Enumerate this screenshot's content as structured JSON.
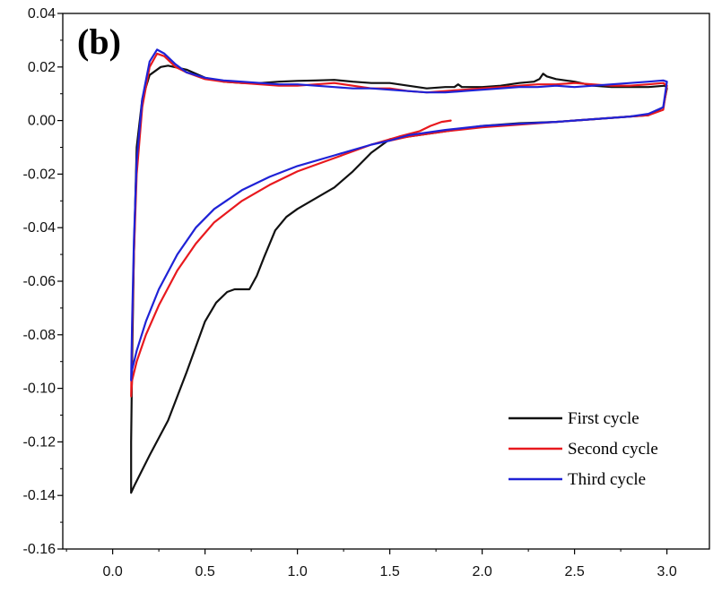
{
  "chart_data": {
    "type": "line",
    "panel_label": "(b)",
    "xlabel": "",
    "ylabel": "",
    "xlim": [
      -0.27,
      3.23
    ],
    "ylim": [
      -0.16,
      0.04
    ],
    "x_ticks": [
      0.0,
      0.5,
      1.0,
      1.5,
      2.0,
      2.5,
      3.0
    ],
    "x_tick_labels": [
      "0.0",
      "0.5",
      "1.0",
      "1.5",
      "2.0",
      "2.5",
      "3.0"
    ],
    "y_ticks": [
      0.04,
      0.02,
      0.0,
      -0.02,
      -0.04,
      -0.06,
      -0.08,
      -0.1,
      -0.12,
      -0.14,
      -0.16
    ],
    "y_tick_labels": [
      "0.04",
      "0.02",
      "0.00",
      "-0.02",
      "-0.04",
      "-0.06",
      "-0.08",
      "-0.10",
      "-0.12",
      "-0.14",
      "-0.16"
    ],
    "grid": false,
    "legend_position": "bottom-right",
    "series": [
      {
        "name": "First cycle",
        "color": "#111111",
        "points": [
          [
            1.5,
            -0.007
          ],
          [
            1.4,
            -0.012
          ],
          [
            1.3,
            -0.019
          ],
          [
            1.2,
            -0.025
          ],
          [
            1.1,
            -0.029
          ],
          [
            1.0,
            -0.033
          ],
          [
            0.94,
            -0.036
          ],
          [
            0.88,
            -0.041
          ],
          [
            0.82,
            -0.051
          ],
          [
            0.78,
            -0.058
          ],
          [
            0.74,
            -0.063
          ],
          [
            0.7,
            -0.063
          ],
          [
            0.66,
            -0.063
          ],
          [
            0.62,
            -0.064
          ],
          [
            0.56,
            -0.068
          ],
          [
            0.5,
            -0.075
          ],
          [
            0.4,
            -0.094
          ],
          [
            0.3,
            -0.112
          ],
          [
            0.2,
            -0.125
          ],
          [
            0.12,
            -0.136
          ],
          [
            0.1,
            -0.139
          ],
          [
            0.1,
            -0.12
          ],
          [
            0.105,
            -0.09
          ],
          [
            0.115,
            -0.05
          ],
          [
            0.13,
            -0.01
          ],
          [
            0.16,
            0.008
          ],
          [
            0.2,
            0.017
          ],
          [
            0.26,
            0.02
          ],
          [
            0.3,
            0.0205
          ],
          [
            0.4,
            0.019
          ],
          [
            0.5,
            0.016
          ],
          [
            0.6,
            0.0145
          ],
          [
            0.7,
            0.014
          ],
          [
            0.8,
            0.014
          ],
          [
            0.9,
            0.0145
          ],
          [
            1.0,
            0.0148
          ],
          [
            1.1,
            0.015
          ],
          [
            1.2,
            0.0152
          ],
          [
            1.3,
            0.0145
          ],
          [
            1.4,
            0.014
          ],
          [
            1.5,
            0.014
          ],
          [
            1.6,
            0.013
          ],
          [
            1.7,
            0.012
          ],
          [
            1.8,
            0.0125
          ],
          [
            1.85,
            0.0125
          ],
          [
            1.87,
            0.0135
          ],
          [
            1.89,
            0.0125
          ],
          [
            2.0,
            0.0125
          ],
          [
            2.1,
            0.013
          ],
          [
            2.2,
            0.014
          ],
          [
            2.28,
            0.0145
          ],
          [
            2.31,
            0.0155
          ],
          [
            2.33,
            0.0175
          ],
          [
            2.35,
            0.0165
          ],
          [
            2.4,
            0.0155
          ],
          [
            2.5,
            0.0145
          ],
          [
            2.6,
            0.013
          ],
          [
            2.7,
            0.0125
          ],
          [
            2.8,
            0.0125
          ],
          [
            2.9,
            0.0125
          ],
          [
            2.99,
            0.013
          ],
          [
            3.0,
            0.012
          ],
          [
            2.98,
            0.005
          ],
          [
            2.9,
            0.002
          ],
          [
            2.8,
            0.0015
          ],
          [
            2.6,
            0.0005
          ],
          [
            2.4,
            -0.0005
          ],
          [
            2.2,
            -0.001
          ],
          [
            2.0,
            -0.002
          ],
          [
            1.8,
            -0.004
          ],
          [
            1.6,
            -0.006
          ],
          [
            1.5,
            -0.007
          ]
        ]
      },
      {
        "name": "Second cycle",
        "color": "#e8191e",
        "points": [
          [
            1.83,
            0.0
          ],
          [
            1.78,
            -0.0005
          ],
          [
            1.72,
            -0.002
          ],
          [
            1.66,
            -0.004
          ],
          [
            1.55,
            -0.006
          ],
          [
            1.4,
            -0.009
          ],
          [
            1.2,
            -0.014
          ],
          [
            1.0,
            -0.019
          ],
          [
            0.85,
            -0.024
          ],
          [
            0.7,
            -0.03
          ],
          [
            0.55,
            -0.038
          ],
          [
            0.45,
            -0.046
          ],
          [
            0.35,
            -0.056
          ],
          [
            0.25,
            -0.069
          ],
          [
            0.18,
            -0.08
          ],
          [
            0.13,
            -0.09
          ],
          [
            0.105,
            -0.097
          ],
          [
            0.1,
            -0.103
          ],
          [
            0.105,
            -0.08
          ],
          [
            0.115,
            -0.05
          ],
          [
            0.13,
            -0.02
          ],
          [
            0.16,
            0.005
          ],
          [
            0.2,
            0.02
          ],
          [
            0.24,
            0.025
          ],
          [
            0.28,
            0.024
          ],
          [
            0.34,
            0.02
          ],
          [
            0.4,
            0.018
          ],
          [
            0.5,
            0.0155
          ],
          [
            0.6,
            0.0145
          ],
          [
            0.7,
            0.014
          ],
          [
            0.8,
            0.0135
          ],
          [
            0.9,
            0.013
          ],
          [
            1.0,
            0.013
          ],
          [
            1.1,
            0.0135
          ],
          [
            1.2,
            0.014
          ],
          [
            1.3,
            0.013
          ],
          [
            1.4,
            0.012
          ],
          [
            1.5,
            0.012
          ],
          [
            1.6,
            0.011
          ],
          [
            1.7,
            0.0105
          ],
          [
            1.8,
            0.011
          ],
          [
            1.9,
            0.0115
          ],
          [
            2.0,
            0.012
          ],
          [
            2.1,
            0.0125
          ],
          [
            2.2,
            0.013
          ],
          [
            2.3,
            0.0135
          ],
          [
            2.4,
            0.0135
          ],
          [
            2.5,
            0.014
          ],
          [
            2.6,
            0.0135
          ],
          [
            2.7,
            0.013
          ],
          [
            2.8,
            0.013
          ],
          [
            2.9,
            0.0135
          ],
          [
            2.98,
            0.014
          ],
          [
            3.0,
            0.013
          ],
          [
            2.98,
            0.004
          ],
          [
            2.9,
            0.002
          ],
          [
            2.8,
            0.0015
          ],
          [
            2.6,
            0.0005
          ],
          [
            2.4,
            -0.0005
          ],
          [
            2.2,
            -0.0015
          ],
          [
            2.0,
            -0.0025
          ],
          [
            1.8,
            -0.004
          ],
          [
            1.6,
            -0.006
          ],
          [
            1.5,
            -0.0075
          ]
        ]
      },
      {
        "name": "Third cycle",
        "color": "#1f22d6",
        "points": [
          [
            1.5,
            -0.0075
          ],
          [
            1.4,
            -0.009
          ],
          [
            1.2,
            -0.013
          ],
          [
            1.0,
            -0.017
          ],
          [
            0.85,
            -0.021
          ],
          [
            0.7,
            -0.026
          ],
          [
            0.55,
            -0.033
          ],
          [
            0.45,
            -0.04
          ],
          [
            0.35,
            -0.05
          ],
          [
            0.25,
            -0.063
          ],
          [
            0.18,
            -0.075
          ],
          [
            0.13,
            -0.086
          ],
          [
            0.105,
            -0.093
          ],
          [
            0.1,
            -0.097
          ],
          [
            0.105,
            -0.075
          ],
          [
            0.115,
            -0.045
          ],
          [
            0.13,
            -0.015
          ],
          [
            0.16,
            0.008
          ],
          [
            0.2,
            0.022
          ],
          [
            0.24,
            0.0265
          ],
          [
            0.28,
            0.025
          ],
          [
            0.34,
            0.021
          ],
          [
            0.4,
            0.018
          ],
          [
            0.5,
            0.016
          ],
          [
            0.6,
            0.015
          ],
          [
            0.7,
            0.0145
          ],
          [
            0.8,
            0.014
          ],
          [
            0.9,
            0.0135
          ],
          [
            1.0,
            0.0135
          ],
          [
            1.1,
            0.013
          ],
          [
            1.2,
            0.0125
          ],
          [
            1.3,
            0.012
          ],
          [
            1.4,
            0.012
          ],
          [
            1.5,
            0.0115
          ],
          [
            1.6,
            0.011
          ],
          [
            1.7,
            0.0105
          ],
          [
            1.8,
            0.0105
          ],
          [
            1.9,
            0.011
          ],
          [
            2.0,
            0.0115
          ],
          [
            2.1,
            0.012
          ],
          [
            2.2,
            0.0125
          ],
          [
            2.3,
            0.0125
          ],
          [
            2.4,
            0.013
          ],
          [
            2.5,
            0.0125
          ],
          [
            2.6,
            0.013
          ],
          [
            2.7,
            0.0135
          ],
          [
            2.8,
            0.014
          ],
          [
            2.9,
            0.0145
          ],
          [
            2.98,
            0.015
          ],
          [
            3.0,
            0.0145
          ],
          [
            2.98,
            0.005
          ],
          [
            2.9,
            0.0025
          ],
          [
            2.8,
            0.0015
          ],
          [
            2.6,
            0.0005
          ],
          [
            2.4,
            -0.0005
          ],
          [
            2.2,
            -0.0012
          ],
          [
            2.0,
            -0.002
          ],
          [
            1.8,
            -0.0035
          ],
          [
            1.6,
            -0.0055
          ],
          [
            1.5,
            -0.0075
          ]
        ]
      }
    ]
  }
}
